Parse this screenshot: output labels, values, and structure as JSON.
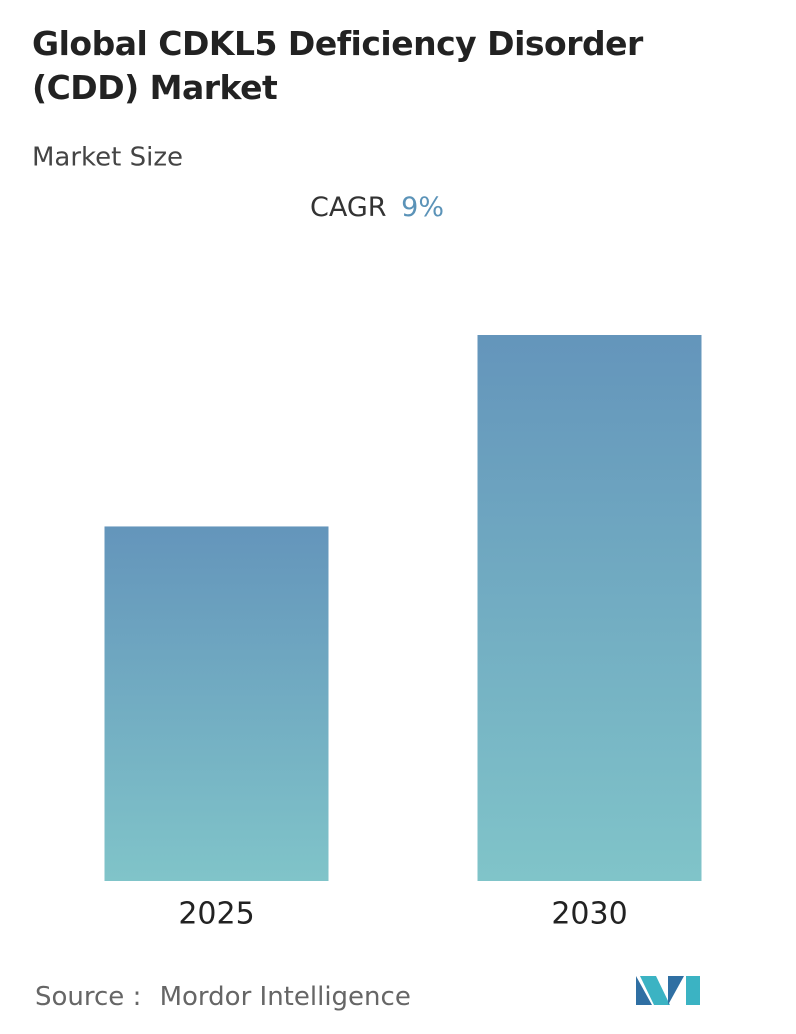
{
  "chart_data": {
    "type": "bar",
    "title": "Global CDKL5 Deficiency Disorder (CDD) Market",
    "subtitle": "Market Size",
    "cagr_label": "CAGR",
    "cagr_value": "9%",
    "categories": [
      "2025",
      "2030"
    ],
    "values": [
      1.0,
      1.54
    ],
    "ylim": [
      0,
      1.54
    ],
    "color_top": "#6495bb",
    "color_bottom": "#80c4c9",
    "source_label": "Source :",
    "source": "Mordor Intelligence"
  }
}
